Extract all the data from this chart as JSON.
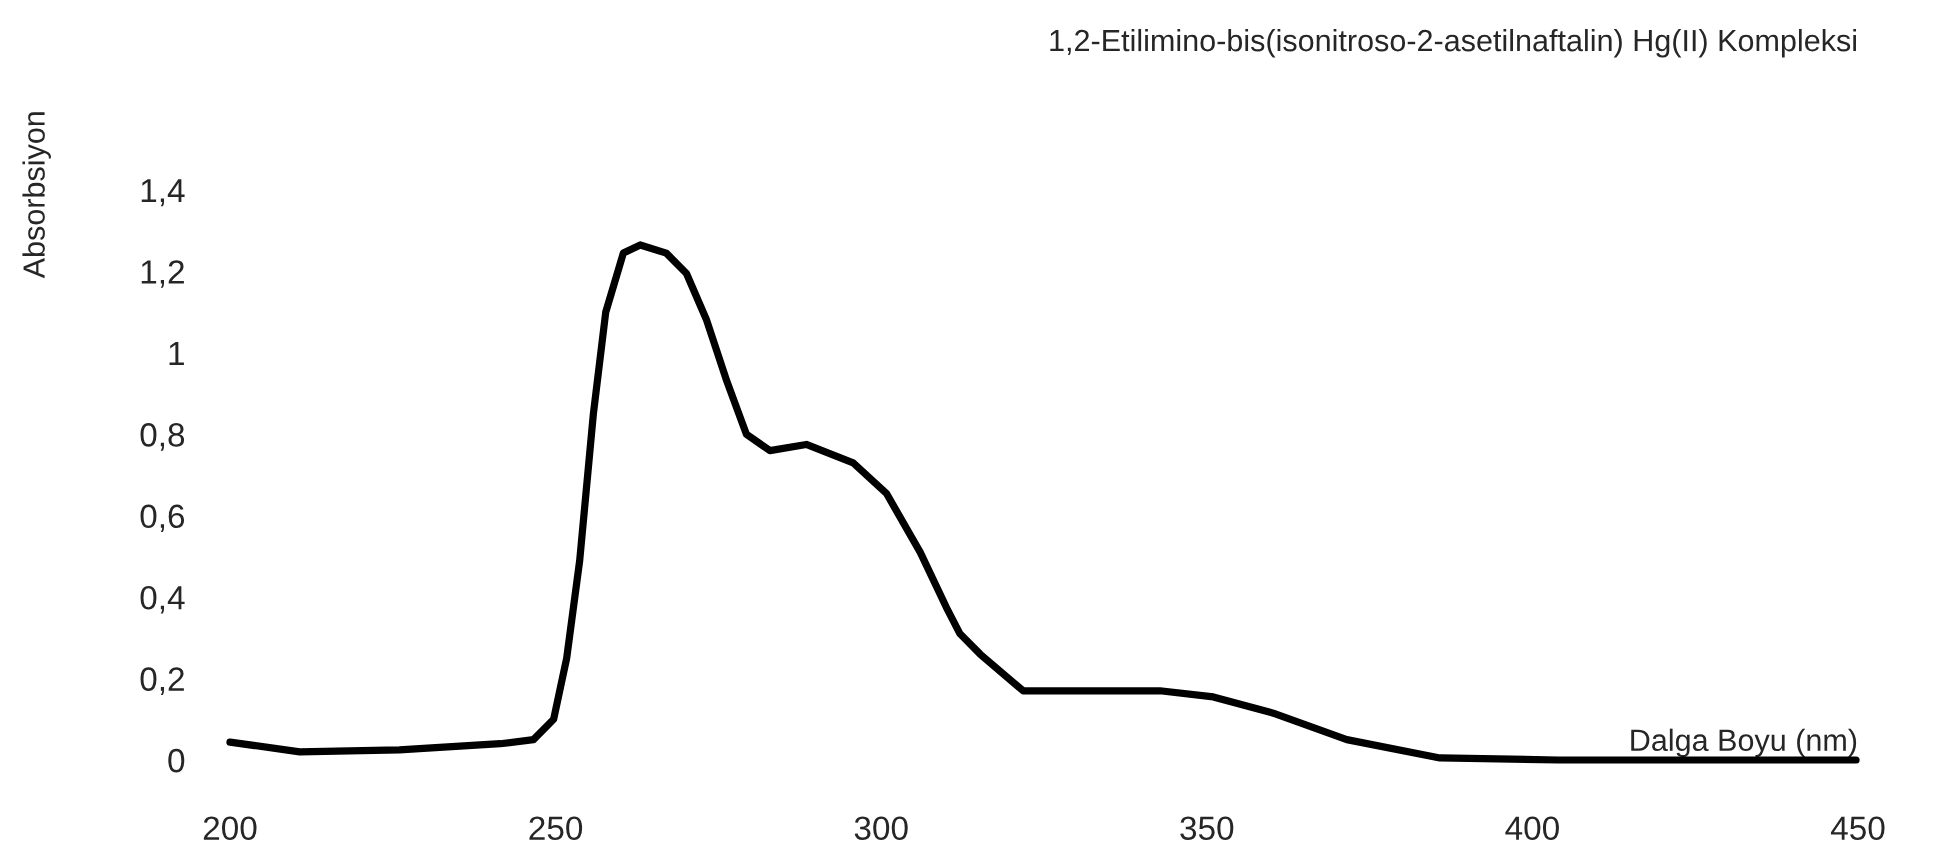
{
  "chart_data": {
    "type": "line",
    "title": "1,2-Etilimino-bis(isonitroso-2-asetilnaftalin) Hg(II) Kompleksi",
    "xlabel": "Dalga Boyu (nm)",
    "ylabel": "Absorbsiyon",
    "series": [
      {
        "color": "#000000",
        "x": [
          200,
          210.7,
          226,
          241.5,
          246.6,
          249.7,
          251.7,
          253.7,
          255.8,
          257.7,
          260.4,
          263,
          267,
          270.1,
          273.2,
          276.3,
          279.3,
          282.9,
          288.5,
          295.7,
          300.8,
          306,
          310,
          312.1,
          315.2,
          321.8,
          342.8,
          351,
          360.2,
          371.5,
          385.8,
          404,
          449.7
        ],
        "values": [
          0.044,
          0.02,
          0.025,
          0.04,
          0.05,
          0.1,
          0.25,
          0.49,
          0.85,
          1.1,
          1.245,
          1.265,
          1.245,
          1.195,
          1.08,
          0.93,
          0.8,
          0.76,
          0.775,
          0.73,
          0.655,
          0.51,
          0.375,
          0.31,
          0.26,
          0.17,
          0.17,
          0.155,
          0.115,
          0.05,
          0.005,
          0,
          0
        ]
      }
    ],
    "xlim": [
      200,
      450
    ],
    "xticks": [
      200,
      250,
      300,
      350,
      400,
      450
    ],
    "ylim": [
      0,
      1.4
    ],
    "yticks": [
      0,
      {
        "value": 0.2,
        "label": "0,2"
      },
      {
        "value": 0.4,
        "label": "0,4"
      },
      {
        "value": 0.6,
        "label": "0,6"
      },
      {
        "value": 0.8,
        "label": "0,8"
      },
      1,
      {
        "value": 1.2,
        "label": "1,2"
      },
      {
        "value": 1.4,
        "label": "1,4"
      }
    ],
    "grid": false,
    "legend": false,
    "line_style": "solid",
    "marker": "none"
  }
}
